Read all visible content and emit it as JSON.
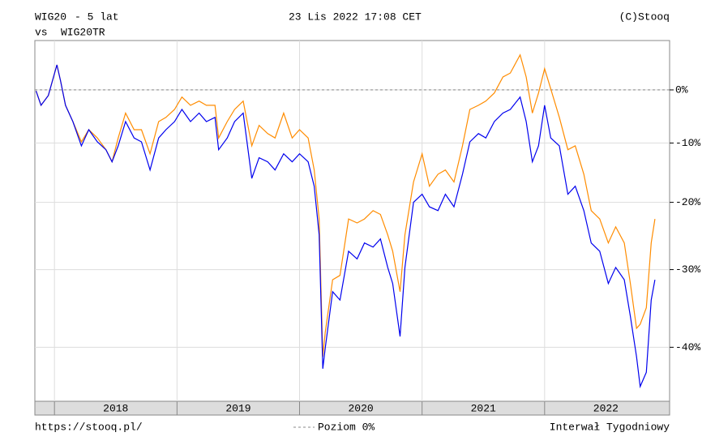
{
  "chart_data": {
    "type": "line",
    "header": {
      "date": "23 Lis 2022 17:08 CET",
      "source": "(C)Stooq",
      "period": "- 5 lat",
      "vs": "vs"
    },
    "footer": {
      "url": "https://stooq.pl/",
      "reference_label": "Poziom 0%",
      "interval": "Interwał Tygodniowy"
    },
    "reference_line": 0,
    "log_scale": true,
    "grid": true,
    "xlim": [
      2017.84,
      2023.02
    ],
    "xticks": [
      2018,
      2019,
      2020,
      2021,
      2022
    ],
    "ylim": [
      -46.1,
      10.3
    ],
    "yticks": [
      {
        "value": 0,
        "label": "0%"
      },
      {
        "value": -10,
        "label": "-10%"
      },
      {
        "value": -20,
        "label": "-20%"
      },
      {
        "value": -30,
        "label": "-30%"
      },
      {
        "value": -40,
        "label": "-40%"
      }
    ],
    "x": [
      2017.85,
      2017.89,
      2017.95,
      2018.02,
      2018.05,
      2018.09,
      2018.15,
      2018.22,
      2018.28,
      2018.35,
      2018.42,
      2018.47,
      2018.52,
      2018.58,
      2018.65,
      2018.71,
      2018.78,
      2018.85,
      2018.91,
      2018.98,
      2019.04,
      2019.11,
      2019.18,
      2019.24,
      2019.31,
      2019.34,
      2019.41,
      2019.47,
      2019.54,
      2019.61,
      2019.67,
      2019.74,
      2019.8,
      2019.87,
      2019.94,
      2020.0,
      2020.07,
      2020.12,
      2020.16,
      2020.19,
      2020.21,
      2020.27,
      2020.33,
      2020.4,
      2020.47,
      2020.53,
      2020.6,
      2020.66,
      2020.72,
      2020.76,
      2020.82,
      2020.86,
      2020.93,
      2021.0,
      2021.06,
      2021.13,
      2021.19,
      2021.26,
      2021.33,
      2021.39,
      2021.46,
      2021.52,
      2021.59,
      2021.66,
      2021.72,
      2021.8,
      2021.85,
      2021.9,
      2021.95,
      2022.0,
      2022.05,
      2022.12,
      2022.19,
      2022.25,
      2022.32,
      2022.38,
      2022.45,
      2022.52,
      2022.58,
      2022.65,
      2022.7,
      2022.75,
      2022.78,
      2022.83,
      2022.87,
      2022.9
    ],
    "series": [
      {
        "name": "WIG20",
        "color": "#0000ee",
        "values": [
          -0.2,
          -3.0,
          -1.1,
          5.1,
          1.8,
          -3.0,
          -6.1,
          -10.5,
          -7.6,
          -9.8,
          -11.2,
          -13.3,
          -10.5,
          -6.1,
          -9.1,
          -9.8,
          -14.7,
          -9.1,
          -7.6,
          -6.1,
          -3.8,
          -6.1,
          -4.5,
          -6.1,
          -5.3,
          -11.2,
          -9.1,
          -6.1,
          -4.5,
          -16.1,
          -12.6,
          -13.3,
          -14.7,
          -11.9,
          -13.3,
          -11.9,
          -13.3,
          -17.4,
          -25.0,
          -42.5,
          -40.1,
          -33.0,
          -34.1,
          -27.4,
          -28.5,
          -26.2,
          -26.8,
          -25.6,
          -29.7,
          -31.9,
          -38.7,
          -29.7,
          -20.0,
          -18.7,
          -20.7,
          -21.3,
          -18.7,
          -20.7,
          -15.4,
          -9.8,
          -8.3,
          -9.1,
          -6.1,
          -4.5,
          -3.8,
          -1.4,
          -6.1,
          -13.3,
          -10.5,
          -3.0,
          -9.1,
          -10.5,
          -18.7,
          -17.4,
          -21.3,
          -26.2,
          -27.4,
          -31.9,
          -29.7,
          -31.4,
          -36.2,
          -41.1,
          -44.5,
          -42.9,
          -34.1,
          -31.4
        ]
      },
      {
        "name": "WIG20TR",
        "color": "#ff8c00",
        "values": [
          -0.2,
          -3.0,
          -1.1,
          5.1,
          1.8,
          -3.0,
          -6.1,
          -9.8,
          -7.6,
          -9.1,
          -11.2,
          -13.3,
          -9.1,
          -4.5,
          -7.6,
          -7.6,
          -11.9,
          -6.1,
          -5.3,
          -3.8,
          -1.4,
          -3.0,
          -2.2,
          -3.0,
          -3.0,
          -9.1,
          -6.1,
          -3.8,
          -2.2,
          -10.5,
          -6.8,
          -8.3,
          -9.1,
          -4.5,
          -9.1,
          -7.6,
          -9.1,
          -14.7,
          -22.6,
          -41.1,
          -38.2,
          -31.4,
          -30.8,
          -22.6,
          -23.2,
          -22.6,
          -21.3,
          -21.9,
          -25.0,
          -27.4,
          -33.0,
          -25.0,
          -16.7,
          -11.9,
          -17.4,
          -15.4,
          -14.7,
          -16.7,
          -10.5,
          -3.8,
          -3.0,
          -2.2,
          -0.6,
          2.6,
          3.4,
          7.2,
          2.6,
          -4.5,
          -0.6,
          4.3,
          0.2,
          -5.3,
          -11.2,
          -10.5,
          -15.4,
          -21.3,
          -22.6,
          -26.2,
          -23.8,
          -26.2,
          -31.9,
          -37.7,
          -37.2,
          -35.1,
          -26.2,
          -22.6
        ]
      }
    ]
  }
}
